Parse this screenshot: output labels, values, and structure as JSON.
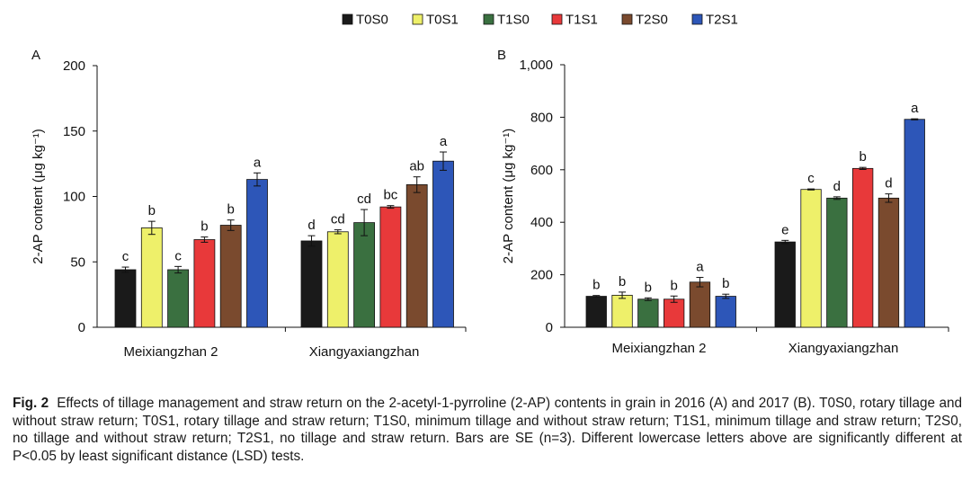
{
  "legend": {
    "entries": [
      {
        "label": "T0S0",
        "color": "#1a1a1a"
      },
      {
        "label": "T0S1",
        "color": "#eef06a"
      },
      {
        "label": "T1S0",
        "color": "#3a7040"
      },
      {
        "label": "T1S1",
        "color": "#e8393a"
      },
      {
        "label": "T2S0",
        "color": "#7a4a2e"
      },
      {
        "label": "T2S1",
        "color": "#2d56b8"
      }
    ]
  },
  "chart_data": [
    {
      "type": "bar",
      "panel_label": "A",
      "ylabel": "2-AP content (μg kg⁻¹)",
      "ylim": [
        0,
        200
      ],
      "yticks": [
        "0",
        "50",
        "100",
        "150",
        "200"
      ],
      "categories": [
        "Meixiangzhan 2",
        "Xiangyaxiangzhan"
      ],
      "series": [
        {
          "name": "T0S0",
          "values": [
            44,
            66
          ],
          "errors": [
            2,
            4
          ],
          "letters": [
            "c",
            "d"
          ]
        },
        {
          "name": "T0S1",
          "values": [
            76,
            73
          ],
          "errors": [
            5,
            1.5
          ],
          "letters": [
            "b",
            "cd"
          ]
        },
        {
          "name": "T1S0",
          "values": [
            44,
            80
          ],
          "errors": [
            2.5,
            10
          ],
          "letters": [
            "c",
            "cd"
          ]
        },
        {
          "name": "T1S1",
          "values": [
            67,
            92
          ],
          "errors": [
            2,
            1
          ],
          "letters": [
            "b",
            "bc"
          ]
        },
        {
          "name": "T2S0",
          "values": [
            78,
            109
          ],
          "errors": [
            4,
            6
          ],
          "letters": [
            "b",
            "ab"
          ]
        },
        {
          "name": "T2S1",
          "values": [
            113,
            127
          ],
          "errors": [
            5,
            7
          ],
          "letters": [
            "a",
            "a"
          ]
        }
      ]
    },
    {
      "type": "bar",
      "panel_label": "B",
      "ylabel": "2-AP content (μg kg⁻¹)",
      "ylim": [
        0,
        1000
      ],
      "yticks": [
        "0",
        "200",
        "400",
        "600",
        "800",
        "1,000"
      ],
      "categories": [
        "Meixiangzhan 2",
        "Xiangyaxiangzhan"
      ],
      "series": [
        {
          "name": "T0S0",
          "values": [
            118,
            325
          ],
          "errors": [
            3,
            6
          ],
          "letters": [
            "b",
            "e"
          ]
        },
        {
          "name": "T0S1",
          "values": [
            122,
            525
          ],
          "errors": [
            12,
            2
          ],
          "letters": [
            "b",
            "c"
          ]
        },
        {
          "name": "T1S0",
          "values": [
            107,
            492
          ],
          "errors": [
            5,
            5
          ],
          "letters": [
            "b",
            "d"
          ]
        },
        {
          "name": "T1S1",
          "values": [
            107,
            605
          ],
          "errors": [
            12,
            4
          ],
          "letters": [
            "b",
            "b"
          ]
        },
        {
          "name": "T2S0",
          "values": [
            172,
            492
          ],
          "errors": [
            18,
            16
          ],
          "letters": [
            "a",
            "d"
          ]
        },
        {
          "name": "T2S1",
          "values": [
            118,
            792
          ],
          "errors": [
            8,
            2
          ],
          "letters": [
            "b",
            "a"
          ]
        }
      ]
    }
  ],
  "caption": {
    "fig_label": "Fig. 2",
    "text": "Effects of tillage management and straw return on the 2-acetyl-1-pyrroline (2-AP) contents in grain in 2016 (A) and 2017 (B).  T0S0, rotary tillage and without straw return; T0S1, rotary tillage and straw return; T1S0, minimum tillage and without straw return; T1S1, minimum tillage and straw return; T2S0, no tillage and without straw return; T2S1, no tillage and straw return.  Bars are SE (n=3).  Different lowercase letters above are significantly different at P<0.05 by least significant distance (LSD) tests."
  }
}
